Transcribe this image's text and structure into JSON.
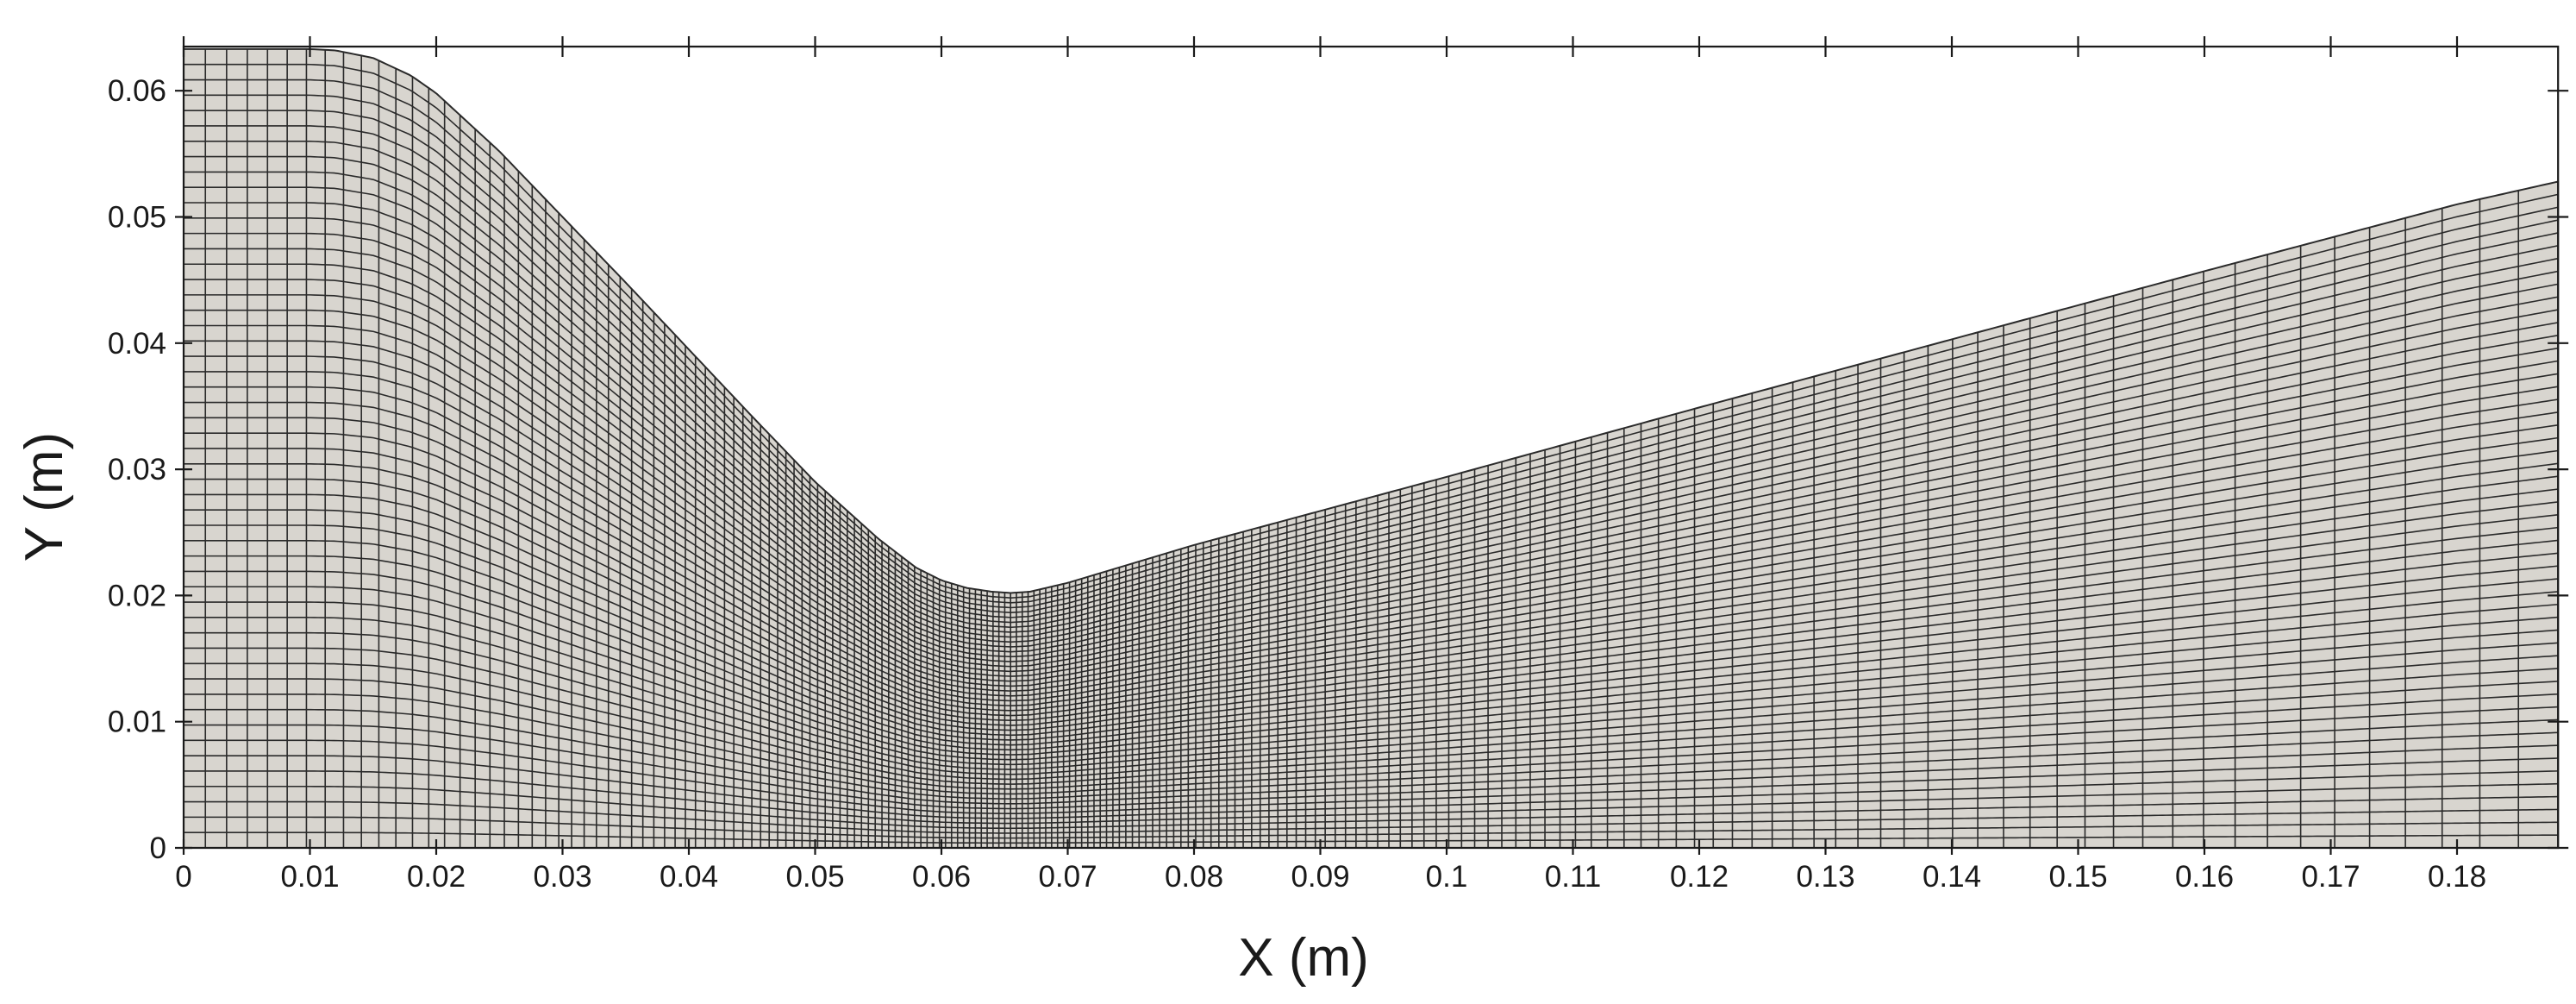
{
  "chart_data": {
    "type": "mesh",
    "xlabel": "X (m)",
    "ylabel": "Y (m)",
    "xlim": [
      0,
      0.188
    ],
    "ylim": [
      0,
      0.0635
    ],
    "x_ticks": [
      "0",
      "0.01",
      "0.02",
      "0.03",
      "0.04",
      "0.05",
      "0.06",
      "0.07",
      "0.08",
      "0.09",
      "0.1",
      "0.11",
      "0.12",
      "0.13",
      "0.14",
      "0.15",
      "0.16",
      "0.17",
      "0.18"
    ],
    "x_tick_values": [
      0,
      0.01,
      0.02,
      0.03,
      0.04,
      0.05,
      0.06,
      0.07,
      0.08,
      0.09,
      0.1,
      0.11,
      0.12,
      0.13,
      0.14,
      0.15,
      0.16,
      0.17,
      0.18
    ],
    "y_ticks": [
      "0",
      "0.01",
      "0.02",
      "0.03",
      "0.04",
      "0.05",
      "0.06"
    ],
    "y_tick_values": [
      0,
      0.01,
      0.02,
      0.03,
      0.04,
      0.05,
      0.06
    ],
    "upper_wall": {
      "x": [
        0,
        0.01,
        0.012,
        0.015,
        0.018,
        0.02,
        0.025,
        0.03,
        0.035,
        0.04,
        0.045,
        0.05,
        0.055,
        0.058,
        0.06,
        0.062,
        0.064,
        0.0655,
        0.067,
        0.07,
        0.08,
        0.09,
        0.1,
        0.12,
        0.14,
        0.16,
        0.18,
        0.188
      ],
      "y": [
        0.0633,
        0.0633,
        0.0632,
        0.0626,
        0.0612,
        0.0598,
        0.0552,
        0.05,
        0.0448,
        0.0395,
        0.0342,
        0.029,
        0.0245,
        0.0222,
        0.0212,
        0.0206,
        0.0203,
        0.0202,
        0.0203,
        0.021,
        0.024,
        0.0267,
        0.0294,
        0.0349,
        0.0403,
        0.0457,
        0.051,
        0.0528
      ]
    },
    "mesh_vertical_lines": 180,
    "mesh_horizontal_lines": 52,
    "cell_color": "#d8d5cf",
    "line_color": "#2a2a2a"
  }
}
